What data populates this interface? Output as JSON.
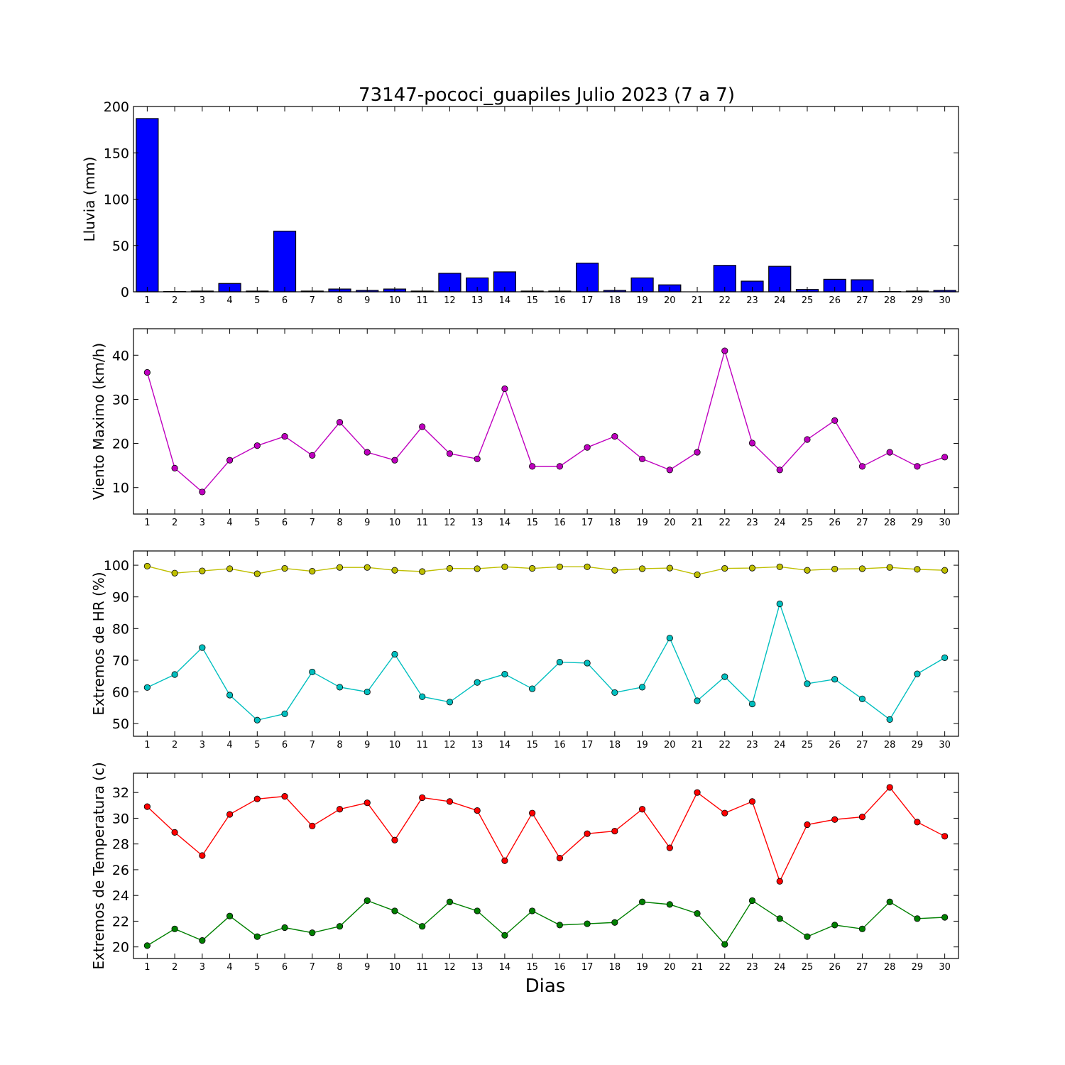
{
  "chart_data": {
    "title": "73147-pococi_guapiles Julio 2023  (7 a 7)",
    "xlabel": "Dias",
    "x": [
      1,
      2,
      3,
      4,
      5,
      6,
      7,
      8,
      9,
      10,
      11,
      12,
      13,
      14,
      15,
      16,
      17,
      18,
      19,
      20,
      21,
      22,
      23,
      24,
      25,
      26,
      27,
      28,
      29,
      30
    ],
    "panels": [
      {
        "type": "bar",
        "ylabel": "Lluvia (mm)",
        "ylim": [
          0,
          200
        ],
        "yticks": [
          0,
          50,
          100,
          150,
          200
        ],
        "series": [
          {
            "color": "#0000ff",
            "values": [
              187,
              0.3,
              0.8,
              9,
              0.8,
              65.5,
              0.8,
              3,
              1.5,
              3,
              0.8,
              20,
              15,
              21.5,
              0.8,
              0.8,
              31,
              1.5,
              15,
              7.5,
              0,
              28.5,
              11.5,
              27.5,
              2.5,
              13.5,
              13,
              0.3,
              0.8,
              1.5
            ]
          }
        ]
      },
      {
        "type": "line",
        "ylabel": "Viento Maximo (km/h)",
        "ylim": [
          4,
          46
        ],
        "yticks": [
          10,
          20,
          30,
          40
        ],
        "series": [
          {
            "color": "#bf00bf",
            "values": [
              36.1,
              14.4,
              9.0,
              16.2,
              19.5,
              21.6,
              17.3,
              24.8,
              18.0,
              16.2,
              23.8,
              17.7,
              16.5,
              32.4,
              14.8,
              14.8,
              19.1,
              21.6,
              16.5,
              14.0,
              18.0,
              41.0,
              20.1,
              14.0,
              20.9,
              25.2,
              14.8,
              18.0,
              14.8,
              16.9
            ]
          }
        ]
      },
      {
        "type": "line",
        "ylabel": "Extremos de HR (%)",
        "ylim": [
          46,
          104.5
        ],
        "yticks": [
          50,
          60,
          70,
          80,
          90,
          100
        ],
        "series": [
          {
            "color": "#bfbf00",
            "values": [
              99.7,
              97.5,
              98.2,
              98.9,
              97.3,
              99.0,
              98.1,
              99.3,
              99.3,
              98.4,
              98.0,
              99.0,
              98.9,
              99.5,
              99.0,
              99.5,
              99.5,
              98.4,
              98.9,
              99.1,
              97.0,
              99.0,
              99.1,
              99.5,
              98.4,
              98.8,
              98.9,
              99.3,
              98.7,
              98.4
            ]
          },
          {
            "color": "#00bfbf",
            "values": [
              61.4,
              65.5,
              74.0,
              59.0,
              51.1,
              53.1,
              66.3,
              61.5,
              60.0,
              71.9,
              58.5,
              56.8,
              63.0,
              65.6,
              61.0,
              69.4,
              69.1,
              59.8,
              61.5,
              77.0,
              57.2,
              64.8,
              56.2,
              87.8,
              62.6,
              64.0,
              57.8,
              51.3,
              65.7,
              70.8
            ]
          }
        ]
      },
      {
        "type": "line",
        "ylabel": "Extremos de Temperatura (c)",
        "ylim": [
          19.1,
          33.5
        ],
        "yticks": [
          20,
          22,
          24,
          26,
          28,
          30,
          32
        ],
        "series": [
          {
            "color": "#ff0000",
            "values": [
              30.9,
              28.9,
              27.1,
              30.3,
              31.5,
              31.7,
              29.4,
              30.7,
              31.2,
              28.3,
              31.6,
              31.3,
              30.6,
              26.7,
              30.4,
              26.9,
              28.8,
              29.0,
              30.7,
              27.7,
              32.0,
              30.4,
              31.3,
              25.1,
              29.5,
              29.9,
              30.1,
              32.4,
              29.7,
              28.6
            ]
          },
          {
            "color": "#008000",
            "values": [
              20.1,
              21.4,
              20.5,
              22.4,
              20.8,
              21.5,
              21.1,
              21.6,
              23.6,
              22.8,
              21.6,
              23.5,
              22.8,
              20.9,
              22.8,
              21.7,
              21.8,
              21.9,
              23.5,
              23.3,
              22.6,
              20.2,
              23.6,
              22.2,
              20.8,
              21.7,
              21.4,
              23.5,
              22.2,
              22.3
            ]
          }
        ]
      }
    ]
  }
}
